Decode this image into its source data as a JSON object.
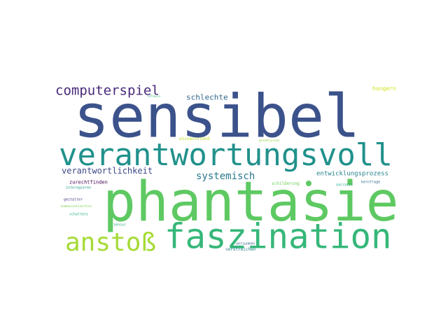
{
  "words": [
    {
      "text": "sensibel",
      "color": "#3b528b"
    },
    {
      "text": "phantasie",
      "color": "#5ec962"
    },
    {
      "text": "verantwortungsvoll",
      "color": "#21918c"
    },
    {
      "text": "faszination",
      "color": "#35b779"
    },
    {
      "text": "anstoß",
      "color": "#a5db36"
    },
    {
      "text": "computerspiel",
      "color": "#482878"
    },
    {
      "text": "systemisch",
      "color": "#2a788e"
    },
    {
      "text": "verantwortlichkeit",
      "color": "#3e4989"
    },
    {
      "text": "schlechte",
      "color": "#31688e"
    },
    {
      "text": "entwicklungsprozess",
      "color": "#26828e"
    },
    {
      "text": "hungern",
      "color": "#d2e21b"
    },
    {
      "text": "zurechtfinden",
      "color": "#440154"
    },
    {
      "text": "schilderung",
      "color": "#6ece58"
    },
    {
      "text": "narrativ",
      "color": "#20a486"
    },
    {
      "text": "kernfrage",
      "color": "#31688e"
    },
    {
      "text": "interagieren",
      "color": "#1f9e89"
    },
    {
      "text": "gestalter",
      "color": "#46327e"
    },
    {
      "text": "kommunikationsform",
      "color": "#7ad151"
    },
    {
      "text": "schattens",
      "color": "#2db27d"
    },
    {
      "text": "zensur",
      "color": "#27ad81"
    },
    {
      "text": "versunken",
      "color": "#365c8d"
    },
    {
      "text": "verstreichen",
      "color": "#277f8e"
    },
    {
      "text": "wissensstand",
      "color": "#bddf26"
    },
    {
      "text": "gesamtsystem",
      "color": "#95d840"
    },
    {
      "text": "reflexiv",
      "color": "#38b977"
    }
  ]
}
